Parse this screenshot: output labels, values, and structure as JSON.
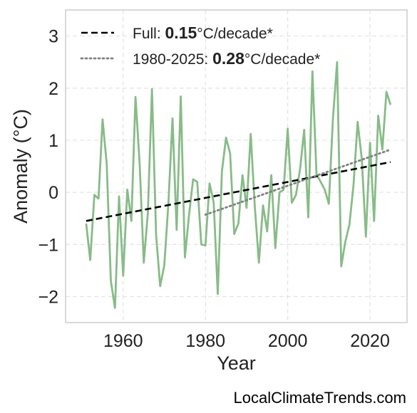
{
  "chart_data": {
    "type": "line",
    "xlabel": "Year",
    "ylabel": "Anomaly (°C)",
    "xlim": [
      1946,
      2029
    ],
    "ylim": [
      -2.5,
      3.5
    ],
    "xticks": [
      1960,
      1980,
      2000,
      2020
    ],
    "yticks": [
      -2,
      -1,
      0,
      1,
      2,
      3
    ],
    "ytick_labels": [
      "−2",
      "−1",
      "0",
      "1",
      "2",
      "3"
    ],
    "grid": true,
    "legend_position": "top-left",
    "series": [
      {
        "color": "#88bb88",
        "style": "solid",
        "x": [
          1951,
          1952,
          1953,
          1954,
          1955,
          1956,
          1957,
          1958,
          1959,
          1960,
          1961,
          1962,
          1963,
          1964,
          1965,
          1966,
          1967,
          1968,
          1969,
          1970,
          1971,
          1972,
          1973,
          1974,
          1975,
          1976,
          1977,
          1978,
          1979,
          1980,
          1981,
          1982,
          1983,
          1984,
          1985,
          1986,
          1987,
          1988,
          1989,
          1990,
          1991,
          1992,
          1993,
          1994,
          1995,
          1996,
          1997,
          1998,
          1999,
          2000,
          2001,
          2002,
          2003,
          2004,
          2005,
          2006,
          2007,
          2008,
          2009,
          2010,
          2011,
          2012,
          2013,
          2014,
          2015,
          2016,
          2017,
          2018,
          2019,
          2020,
          2021,
          2022,
          2023,
          2024,
          2025
        ],
        "values": [
          -0.6,
          -1.3,
          -0.05,
          -0.12,
          1.4,
          0.55,
          -1.7,
          -2.22,
          -0.08,
          -1.6,
          0.05,
          -0.55,
          1.83,
          0.55,
          -1.35,
          -0.4,
          1.98,
          -0.82,
          -1.8,
          -1.4,
          -0.2,
          1.42,
          -0.72,
          1.84,
          -1.25,
          -0.45,
          0.25,
          0.2,
          -1.0,
          -1.02,
          0.17,
          -0.2,
          -1.95,
          0.4,
          1.05,
          0.75,
          -0.8,
          -0.6,
          0.33,
          -0.3,
          1.12,
          -0.28,
          -1.35,
          -0.25,
          -0.75,
          0.33,
          -1.07,
          0.0,
          0.05,
          1.22,
          -0.2,
          -0.05,
          0.45,
          1.2,
          -0.48,
          2.32,
          0.35,
          0.2,
          0.05,
          -0.22,
          1.42,
          2.5,
          -1.42,
          -0.95,
          -0.62,
          0.15,
          1.35,
          0.65,
          -0.85,
          0.95,
          -0.55,
          1.47,
          0.82,
          1.93,
          1.68
        ]
      },
      {
        "name_prefix": "Full: ",
        "name_value": "0.15",
        "name_suffix": "°C/decade*",
        "color": "#000000",
        "style": "dashed",
        "x": [
          1951,
          2025
        ],
        "values": [
          -0.55,
          0.58
        ]
      },
      {
        "name_prefix": "1980-2025: ",
        "name_value": "0.28",
        "name_suffix": "°C/decade*",
        "color": "#808080",
        "style": "dotted",
        "x": [
          1980,
          2025
        ],
        "values": [
          -0.43,
          0.82
        ]
      }
    ]
  },
  "credit": "LocalClimateTrends.com"
}
